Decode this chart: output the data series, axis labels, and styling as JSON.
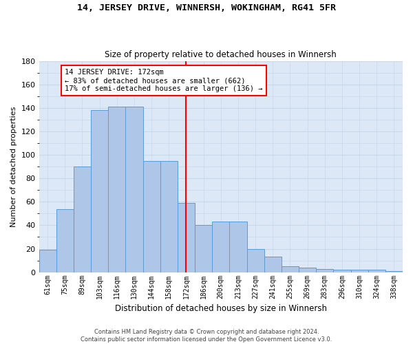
{
  "title": "14, JERSEY DRIVE, WINNERSH, WOKINGHAM, RG41 5FR",
  "subtitle": "Size of property relative to detached houses in Winnersh",
  "xlabel": "Distribution of detached houses by size in Winnersh",
  "ylabel": "Number of detached properties",
  "categories": [
    "61sqm",
    "75sqm",
    "89sqm",
    "103sqm",
    "116sqm",
    "130sqm",
    "144sqm",
    "158sqm",
    "172sqm",
    "186sqm",
    "200sqm",
    "213sqm",
    "227sqm",
    "241sqm",
    "255sqm",
    "269sqm",
    "283sqm",
    "296sqm",
    "310sqm",
    "324sqm",
    "338sqm"
  ],
  "bar_values": [
    19,
    54,
    90,
    138,
    141,
    141,
    95,
    95,
    59,
    40,
    43,
    43,
    20,
    13,
    5,
    4,
    3,
    2,
    2,
    2,
    1
  ],
  "bar_color": "#aec6e8",
  "bar_edge_color": "#5b9bd5",
  "grid_color": "#c8d8ea",
  "background_color": "#dce8f5",
  "vline_color": "red",
  "annotation_text": "14 JERSEY DRIVE: 172sqm\n← 83% of detached houses are smaller (662)\n17% of semi-detached houses are larger (136) →",
  "ylim": [
    0,
    180
  ],
  "yticks": [
    0,
    20,
    40,
    60,
    80,
    100,
    120,
    140,
    160,
    180
  ],
  "footer_line1": "Contains HM Land Registry data © Crown copyright and database right 2024.",
  "footer_line2": "Contains public sector information licensed under the Open Government Licence v3.0."
}
